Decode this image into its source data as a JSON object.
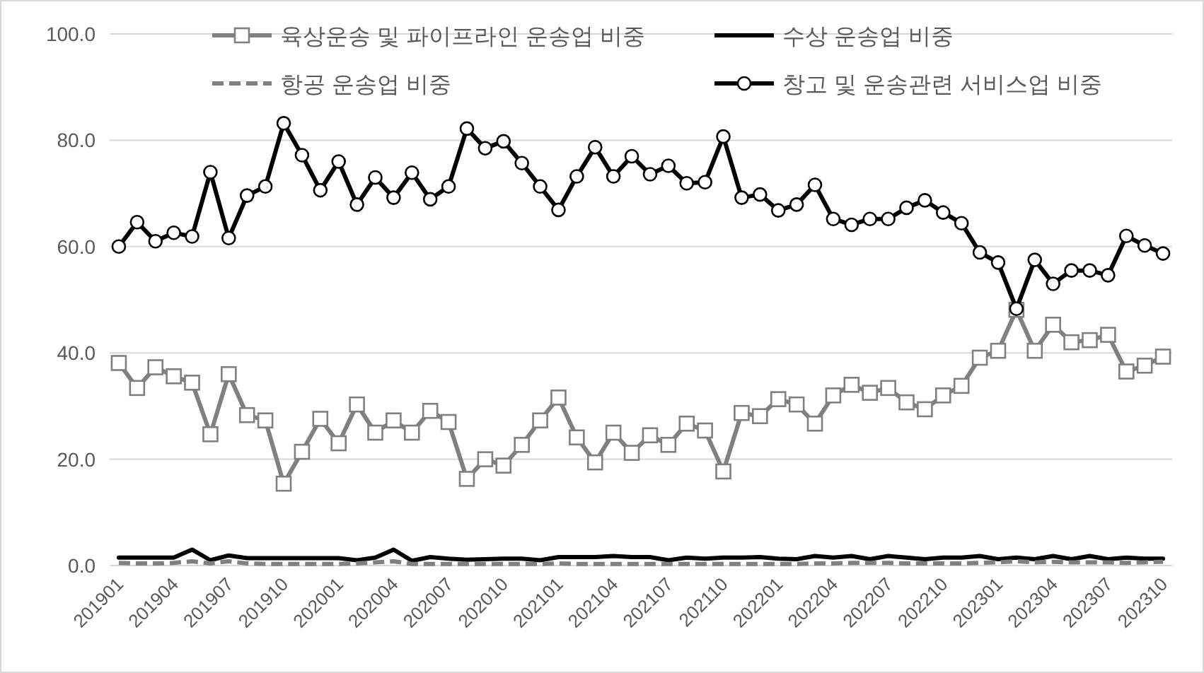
{
  "chart_data": {
    "type": "line",
    "categories": [
      "201901",
      null,
      null,
      "201904",
      null,
      null,
      "201907",
      null,
      null,
      "201910",
      null,
      null,
      "202001",
      null,
      null,
      "202004",
      null,
      null,
      "202007",
      null,
      null,
      "202010",
      null,
      null,
      "202101",
      null,
      null,
      "202104",
      null,
      null,
      "202107",
      null,
      null,
      "202110",
      null,
      null,
      "202201",
      null,
      null,
      "202204",
      null,
      null,
      "202207",
      null,
      null,
      "202210",
      null,
      null,
      "202301",
      null,
      null,
      "202304",
      null,
      null,
      "202307",
      null,
      null,
      "202310"
    ],
    "series": [
      {
        "name": "육상운송 및 파이프라인 운송업 비중",
        "color": "#808080",
        "marker": "square",
        "line_style": "solid",
        "values": [
          38.1,
          33.4,
          37.3,
          35.6,
          34.4,
          24.7,
          36.0,
          28.3,
          27.3,
          15.4,
          21.4,
          27.6,
          23.0,
          30.3,
          25.0,
          27.3,
          25.0,
          29.1,
          27.0,
          16.3,
          20.0,
          18.8,
          22.7,
          27.3,
          31.6,
          24.1,
          19.4,
          25.0,
          21.2,
          24.5,
          22.7,
          26.7,
          25.4,
          17.7,
          28.7,
          28.1,
          31.3,
          30.3,
          26.7,
          32.0,
          34.0,
          32.5,
          33.4,
          30.7,
          29.4,
          32.0,
          33.8,
          39.1,
          40.4,
          48.1,
          40.4,
          45.3,
          42.0,
          42.4,
          43.4,
          36.5,
          37.6,
          39.3
        ]
      },
      {
        "name": "수상 운송업 비중",
        "color": "#000000",
        "marker": "none",
        "line_style": "solid",
        "values": [
          1.5,
          1.5,
          1.5,
          1.5,
          3.0,
          1.0,
          1.9,
          1.4,
          1.4,
          1.4,
          1.4,
          1.4,
          1.4,
          1.0,
          1.5,
          3.0,
          0.9,
          1.6,
          1.3,
          1.1,
          1.2,
          1.3,
          1.3,
          1.0,
          1.6,
          1.6,
          1.6,
          1.8,
          1.6,
          1.6,
          1.0,
          1.5,
          1.3,
          1.5,
          1.5,
          1.6,
          1.3,
          1.2,
          1.8,
          1.5,
          1.8,
          1.2,
          1.8,
          1.5,
          1.2,
          1.5,
          1.5,
          1.8,
          1.2,
          1.5,
          1.2,
          1.8,
          1.2,
          1.8,
          1.2,
          1.5,
          1.3,
          1.3
        ]
      },
      {
        "name": "항공 운송업 비중",
        "color": "#808080",
        "marker": "none",
        "line_style": "dashed",
        "values": [
          0.5,
          0.4,
          0.4,
          0.5,
          0.8,
          0.4,
          0.8,
          0.4,
          0.3,
          0.3,
          0.3,
          0.3,
          0.3,
          0.4,
          0.6,
          0.8,
          0.3,
          0.3,
          0.3,
          0.3,
          0.3,
          0.3,
          0.3,
          0.3,
          0.4,
          0.3,
          0.3,
          0.3,
          0.3,
          0.3,
          0.3,
          0.3,
          0.3,
          0.3,
          0.3,
          0.3,
          0.3,
          0.3,
          0.4,
          0.4,
          0.5,
          0.5,
          0.5,
          0.4,
          0.4,
          0.4,
          0.4,
          0.5,
          0.6,
          0.8,
          0.6,
          0.7,
          0.6,
          0.6,
          0.6,
          0.5,
          0.6,
          0.7
        ]
      },
      {
        "name": "창고 및 운송관련 서비스업 비중",
        "color": "#000000",
        "marker": "circle",
        "line_style": "solid",
        "values": [
          60.0,
          64.6,
          61.0,
          62.6,
          61.9,
          74.0,
          61.6,
          69.6,
          71.3,
          83.2,
          77.2,
          70.6,
          76.0,
          67.9,
          73.0,
          69.2,
          73.9,
          68.9,
          71.3,
          82.2,
          78.5,
          79.8,
          75.7,
          71.3,
          66.9,
          73.2,
          78.7,
          73.2,
          77.0,
          73.6,
          75.2,
          71.9,
          72.1,
          80.7,
          69.2,
          69.8,
          66.8,
          67.9,
          71.6,
          65.2,
          64.1,
          65.2,
          65.2,
          67.3,
          68.7,
          66.4,
          64.4,
          58.9,
          57.0,
          48.3,
          57.5,
          53.0,
          55.5,
          55.5,
          54.6,
          62.0,
          60.2,
          58.7
        ]
      }
    ],
    "ylim": [
      0,
      100
    ],
    "yticks": [
      {
        "value": 0,
        "label": "0.0"
      },
      {
        "value": 20,
        "label": "20.0"
      },
      {
        "value": 40,
        "label": "40.0"
      },
      {
        "value": 60,
        "label": "60.0"
      },
      {
        "value": 80,
        "label": "80.0"
      },
      {
        "value": 100,
        "label": "100.0"
      }
    ],
    "grid": "y",
    "legend": "top"
  }
}
